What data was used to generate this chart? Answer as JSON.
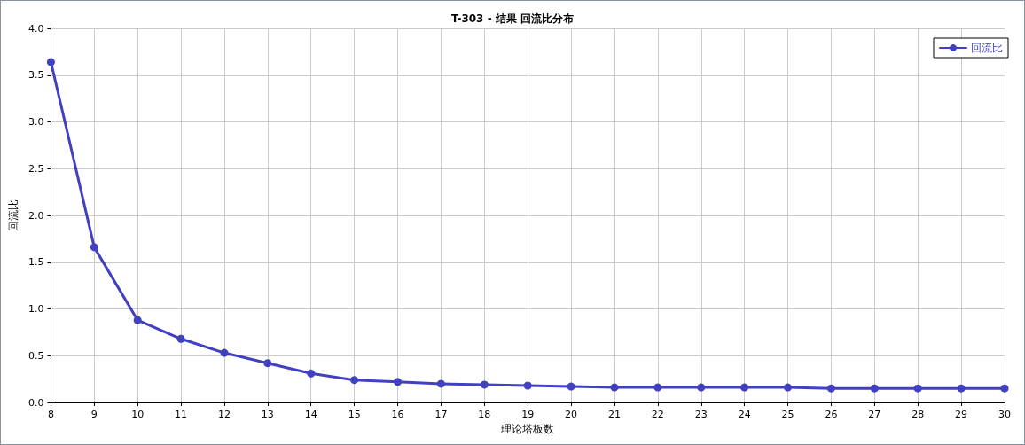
{
  "chart_data": {
    "type": "line",
    "title": "T-303 - 结果 回流比分布",
    "xlabel": "理论塔板数",
    "ylabel": "回流比",
    "x": [
      8,
      9,
      10,
      11,
      12,
      13,
      14,
      15,
      16,
      17,
      18,
      19,
      20,
      21,
      22,
      23,
      24,
      25,
      26,
      27,
      28,
      29,
      30
    ],
    "series": [
      {
        "name": "回流比",
        "color": "#4040c0",
        "values": [
          3.64,
          1.66,
          0.88,
          0.68,
          0.53,
          0.42,
          0.31,
          0.24,
          0.22,
          0.2,
          0.19,
          0.18,
          0.17,
          0.16,
          0.16,
          0.16,
          0.16,
          0.16,
          0.15,
          0.15,
          0.15,
          0.15,
          0.15
        ]
      }
    ],
    "xlim": [
      8,
      30
    ],
    "xticks": [
      8,
      9,
      10,
      11,
      12,
      13,
      14,
      15,
      16,
      17,
      18,
      19,
      20,
      21,
      22,
      23,
      24,
      25,
      26,
      27,
      28,
      29,
      30
    ],
    "ylim": [
      0,
      4
    ],
    "yticks": [
      {
        "value": 0,
        "label": "0.0"
      },
      0.5,
      {
        "value": 1,
        "label": "1.0"
      },
      1.5,
      {
        "value": 2,
        "label": "2.0"
      },
      2.5,
      {
        "value": 3,
        "label": "3.0"
      },
      3.5,
      {
        "value": 4,
        "label": "4.0"
      }
    ],
    "grid": true,
    "legend": "top right",
    "marker": "circle",
    "line_style": "solid"
  }
}
